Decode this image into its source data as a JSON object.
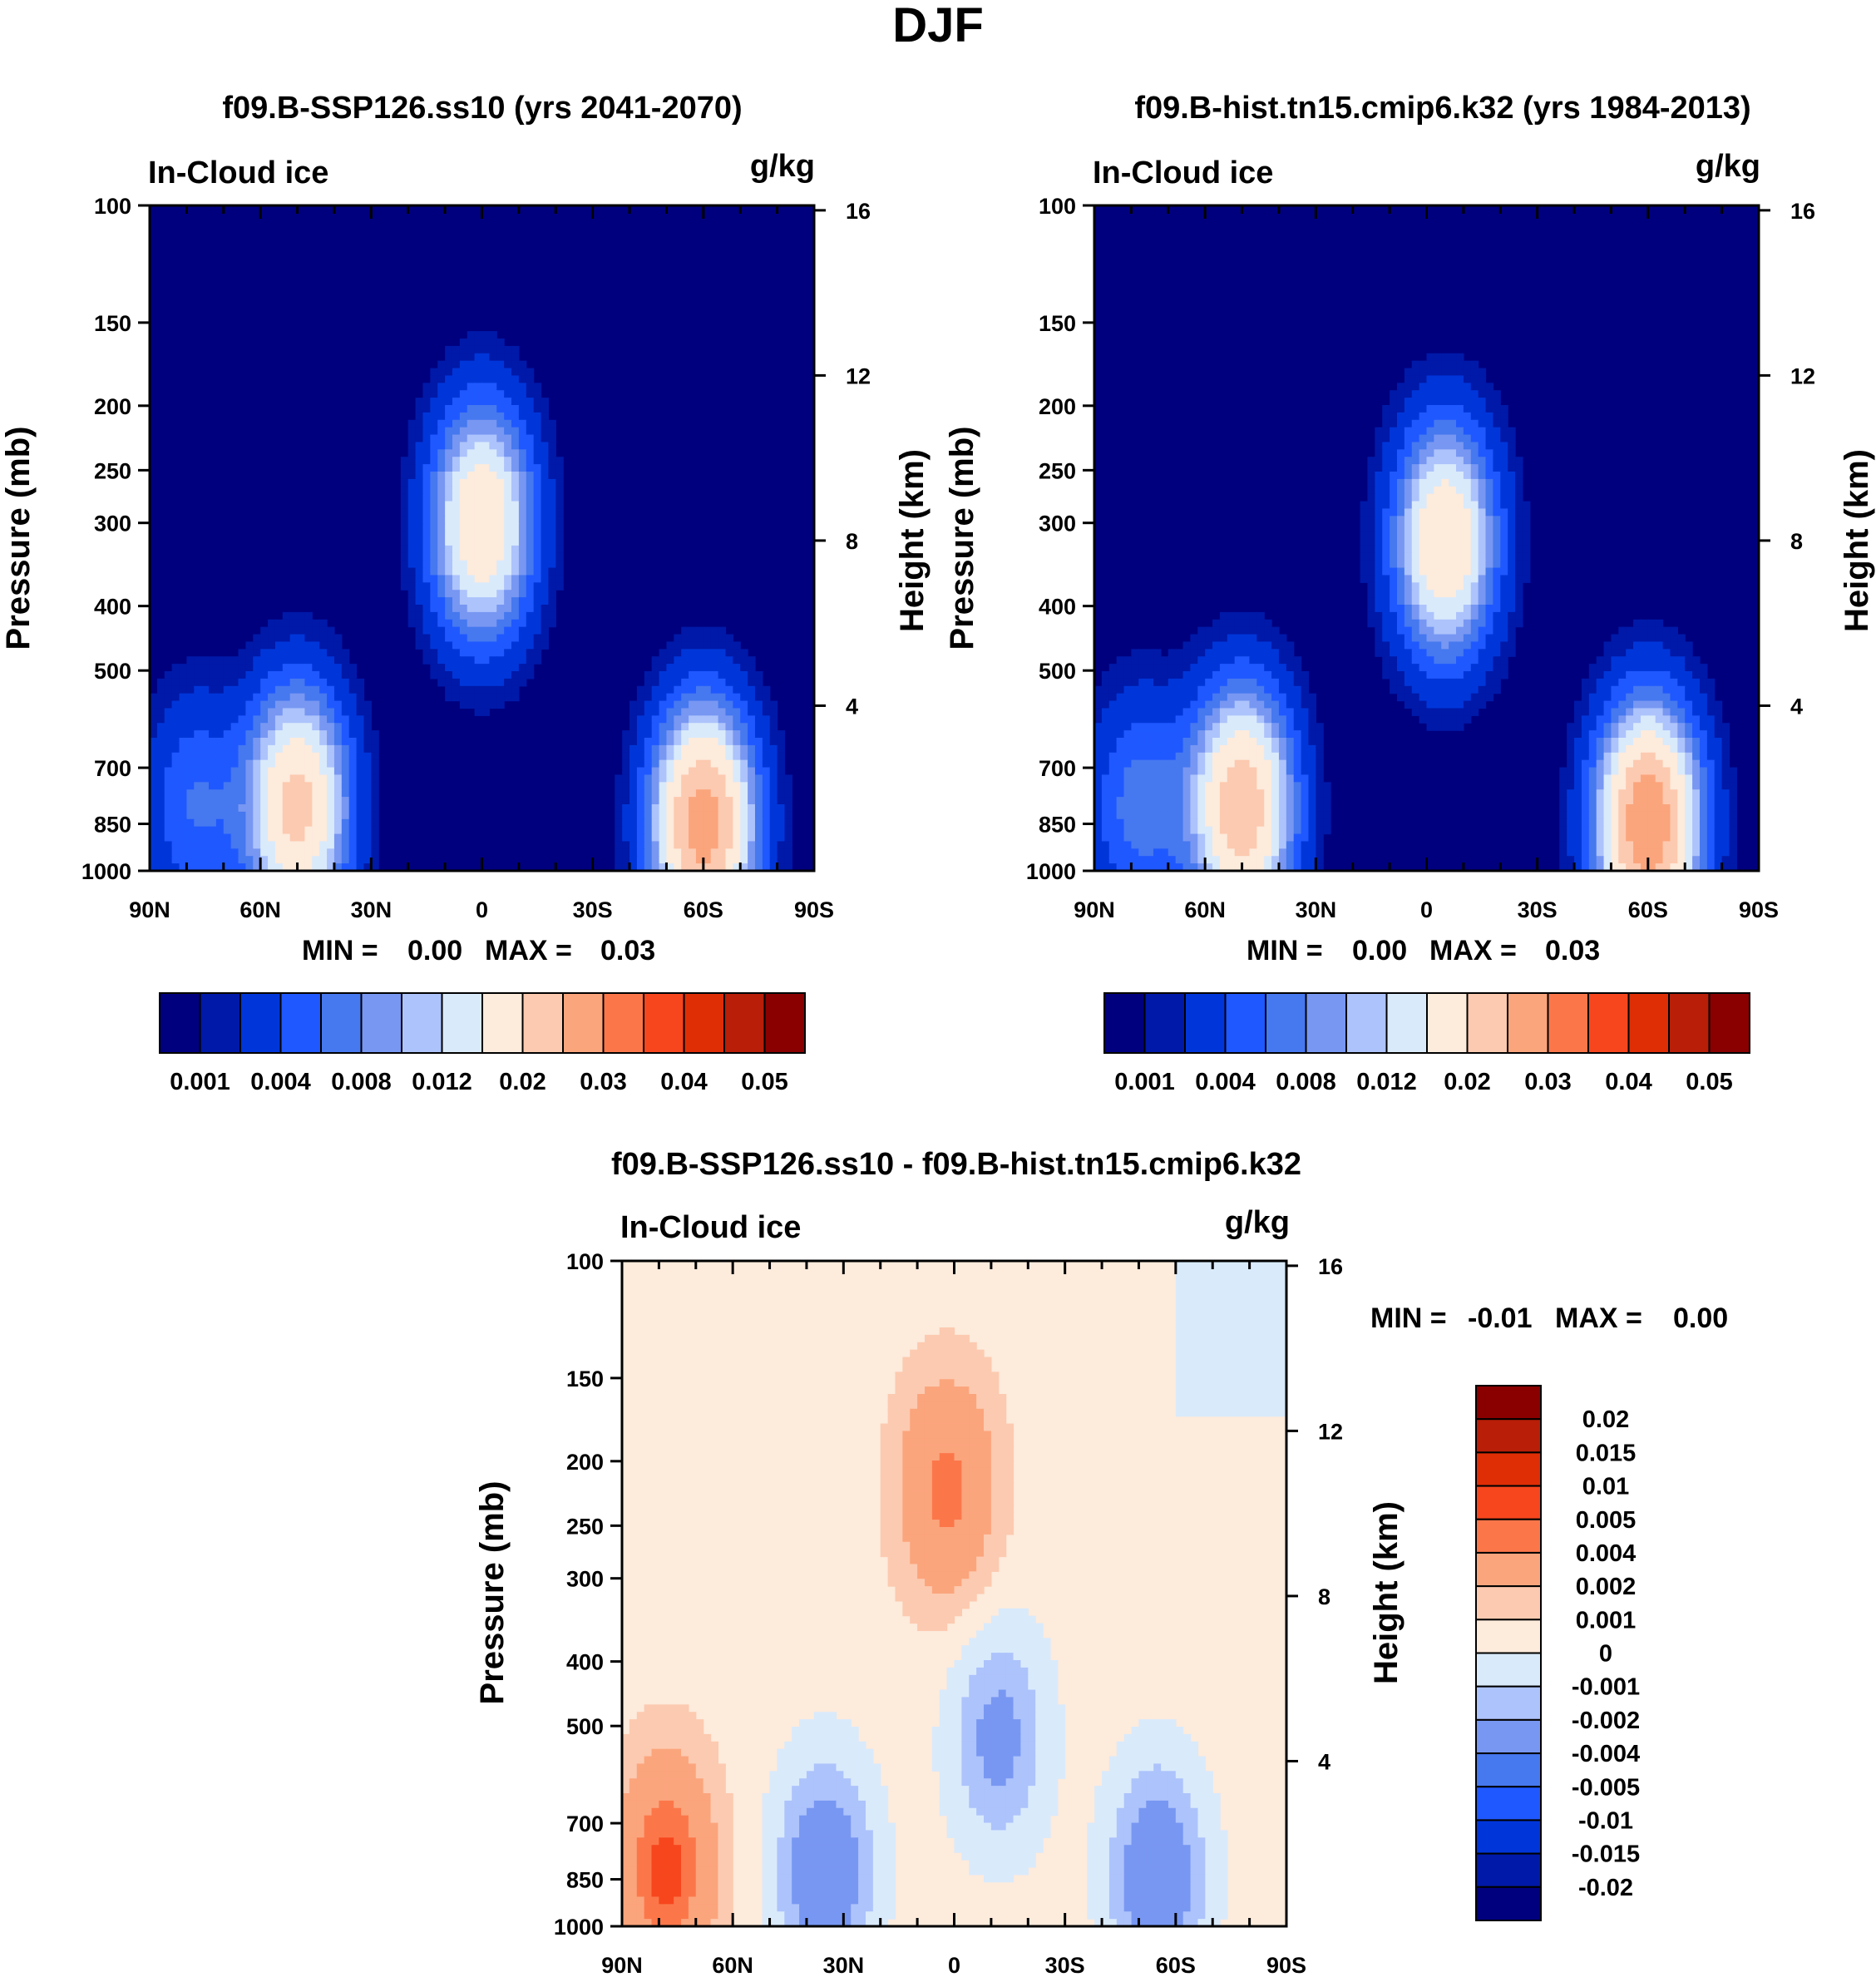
{
  "figure_title": "DJF",
  "colors": {
    "seq": [
      "#00007f",
      "#0019a8",
      "#0036d9",
      "#1f58ff",
      "#4678ef",
      "#7897f2",
      "#adc3fb",
      "#d9eafb",
      "#fdebdc",
      "#fccab0",
      "#fba57d",
      "#fb774a",
      "#f7461d",
      "#df2e06",
      "#b81e08",
      "#8a0000"
    ],
    "diff": [
      "#00007f",
      "#0019a8",
      "#0036d9",
      "#1f58ff",
      "#4678ef",
      "#7897f2",
      "#adc3fb",
      "#d9eafb",
      "#fdebdc",
      "#fccab0",
      "#fba57d",
      "#fb774a",
      "#f7461d",
      "#df2e06",
      "#b81e08",
      "#8a0000"
    ]
  },
  "chart_data": [
    {
      "type": "heatmap",
      "title": "f09.B-SSP126.ss10 (yrs 2041-2070)",
      "left_label": "In-Cloud ice",
      "units": "g/kg",
      "ylabel": "Pressure (mb)",
      "ylabel_right": "Height (km)",
      "pressure_ticks": [
        "100",
        "150",
        "200",
        "250",
        "300",
        "400",
        "500",
        "700",
        "850",
        "1000"
      ],
      "height_ticks": [
        "16",
        "12",
        "8",
        "4"
      ],
      "lat_ticks": [
        "90N",
        "60N",
        "30N",
        "0",
        "30S",
        "60S",
        "90S"
      ],
      "min_label": "MIN =",
      "min_value": "0.00",
      "max_label": "MAX =",
      "max_value": "0.03",
      "colorbar_labels": [
        "0.001",
        "0.004",
        "0.008",
        "0.012",
        "0.02",
        "0.03",
        "0.04",
        "0.05"
      ],
      "features": [
        {
          "lat": 0,
          "p": 300,
          "peak": 0.02
        },
        {
          "lat": 50,
          "p": 800,
          "peak": 0.022
        },
        {
          "lat": -60,
          "p": 850,
          "peak": 0.028
        },
        {
          "lat": 78,
          "p": 800,
          "peak": 0.006
        }
      ]
    },
    {
      "type": "heatmap",
      "title": "f09.B-hist.tn15.cmip6.k32 (yrs 1984-2013)",
      "left_label": "In-Cloud ice",
      "units": "g/kg",
      "ylabel": "Pressure (mb)",
      "ylabel_right": "Height (km)",
      "pressure_ticks": [
        "100",
        "150",
        "200",
        "250",
        "300",
        "400",
        "500",
        "700",
        "850",
        "1000"
      ],
      "height_ticks": [
        "16",
        "12",
        "8",
        "4"
      ],
      "lat_ticks": [
        "90N",
        "60N",
        "30N",
        "0",
        "30S",
        "60S",
        "90S"
      ],
      "min_label": "MIN =",
      "min_value": "0.00",
      "max_label": "MAX =",
      "max_value": "0.03",
      "colorbar_labels": [
        "0.001",
        "0.004",
        "0.008",
        "0.012",
        "0.02",
        "0.03",
        "0.04",
        "0.05"
      ],
      "features": [
        {
          "lat": -5,
          "p": 320,
          "peak": 0.02
        },
        {
          "lat": 50,
          "p": 800,
          "peak": 0.024
        },
        {
          "lat": -60,
          "p": 850,
          "peak": 0.03
        },
        {
          "lat": 78,
          "p": 800,
          "peak": 0.007
        }
      ]
    },
    {
      "type": "heatmap",
      "title": "f09.B-SSP126.ss10 - f09.B-hist.tn15.cmip6.k32",
      "left_label": "In-Cloud ice",
      "units": "g/kg",
      "ylabel": "Pressure (mb)",
      "ylabel_right": "Height (km)",
      "pressure_ticks": [
        "100",
        "150",
        "200",
        "250",
        "300",
        "400",
        "500",
        "700",
        "850",
        "1000"
      ],
      "height_ticks": [
        "16",
        "12",
        "8",
        "4"
      ],
      "lat_ticks": [
        "90N",
        "60N",
        "30N",
        "0",
        "30S",
        "60S",
        "90S"
      ],
      "min_label": "MIN =",
      "min_value": "-0.01",
      "max_label": "MAX =",
      "max_value": "0.00",
      "colorbar_labels": [
        "0.02",
        "0.015",
        "0.01",
        "0.005",
        "0.004",
        "0.002",
        "0.001",
        "0",
        "-0.001",
        "-0.002",
        "-0.004",
        "-0.005",
        "-0.01",
        "-0.015",
        "-0.02"
      ],
      "features": [
        {
          "lat": 2,
          "p": 220,
          "peak": 0.004
        },
        {
          "lat": 78,
          "p": 820,
          "peak": 0.005
        },
        {
          "lat": -12,
          "p": 520,
          "peak": -0.003
        },
        {
          "lat": 35,
          "p": 830,
          "peak": -0.004
        },
        {
          "lat": -55,
          "p": 840,
          "peak": -0.004
        }
      ]
    }
  ]
}
